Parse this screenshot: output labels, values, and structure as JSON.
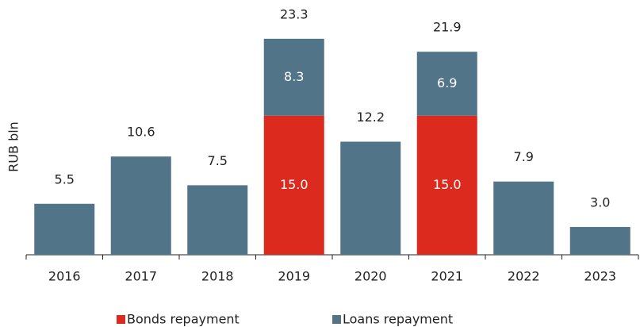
{
  "chart_data": {
    "type": "stacked_bar",
    "y_label": "RUB bln",
    "categories": [
      "2016",
      "2017",
      "2018",
      "2019",
      "2020",
      "2021",
      "2022",
      "2023"
    ],
    "series": [
      {
        "name": "Bonds repayment",
        "color": "#dc2a1e",
        "values": [
          null,
          null,
          null,
          15,
          null,
          15,
          null,
          null
        ],
        "value_labels": [
          null,
          null,
          null,
          "15.0",
          null,
          "15.0",
          null,
          null
        ]
      },
      {
        "name": "Loans repayment",
        "color": "#527489",
        "values": [
          5.5,
          10.6,
          7.5,
          8.3,
          12.2,
          6.9,
          7.9,
          3
        ]
      }
    ],
    "totals": [
      5.5,
      10.6,
      7.5,
      23.3,
      12.2,
      21.9,
      7.9,
      3
    ],
    "total_labels": [
      null,
      null,
      null,
      null,
      null,
      null,
      null,
      "3.0"
    ],
    "ylim": [
      0,
      25
    ],
    "legend": "bottom"
  }
}
